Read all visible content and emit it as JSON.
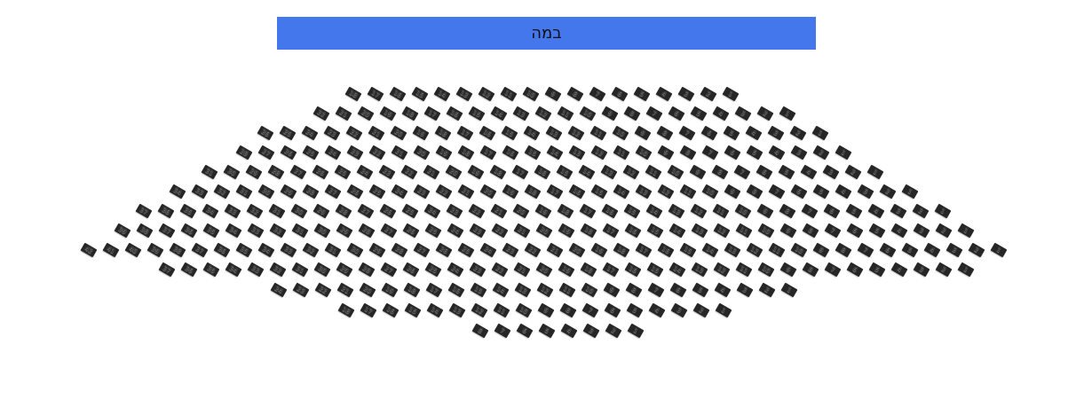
{
  "stage": {
    "label": "במה",
    "color": "#4476ec"
  },
  "seat_color": "#262626",
  "seat_numbering": "right-to-left",
  "rows": [
    {
      "count": 18
    },
    {
      "count": 22
    },
    {
      "count": 26
    },
    {
      "count": 28
    },
    {
      "count": 31
    },
    {
      "count": 34
    },
    {
      "count": 37
    },
    {
      "count": 39
    },
    {
      "count": 42
    },
    {
      "count": 37
    },
    {
      "count": 24
    },
    {
      "count": 18
    },
    {
      "count": 8
    }
  ]
}
